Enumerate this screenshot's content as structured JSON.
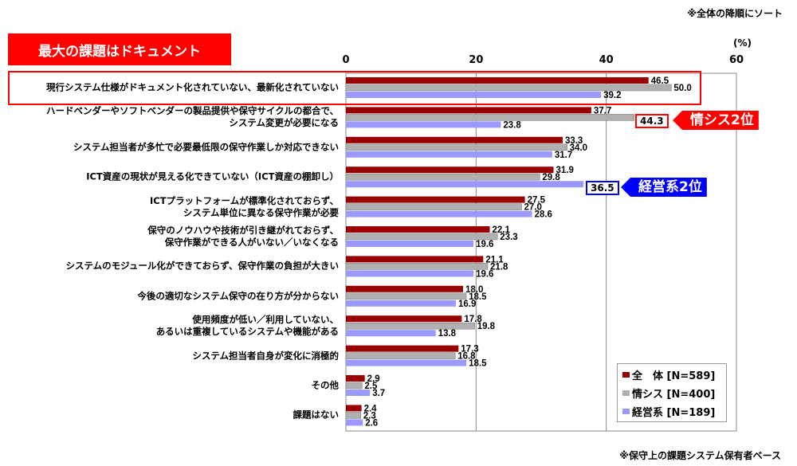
{
  "notes": {
    "sort_note": "※全体の降順にソート",
    "base_note": "※保守上の課題システム保有者ベース",
    "unit": "(%)"
  },
  "headline": "最大の課題はドキュメント",
  "callouts": [
    {
      "value": "44.3",
      "label": "情シス2位",
      "color": "#ff0000"
    },
    {
      "value": "36.5",
      "label": "経営系2位",
      "color": "#0000ff"
    }
  ],
  "chart_data": {
    "type": "bar",
    "orientation": "horizontal",
    "xlim": [
      0,
      60
    ],
    "xticks": [
      "0",
      "20",
      "40",
      "60"
    ],
    "xlabel": "(%)",
    "grid": true,
    "legend_position": "bottom-right",
    "categories": [
      [
        "現行システム仕様がドキュメント化されていない、最新化されていない"
      ],
      [
        "ハードベンダーやソフトベンダーの製品提供や保守サイクルの都合で、",
        "システム変更が必要になる"
      ],
      [
        "システム担当者が多忙で必要最低限の保守作業しか対応できない"
      ],
      [
        "ICT資産の現状が見える化できていない（ICT資産の棚卸し）"
      ],
      [
        "ICTプラットフォームが標準化されておらず、",
        "システム単位に異なる保守作業が必要"
      ],
      [
        "保守のノウハウや技術が引き継がれておらず、",
        "保守作業ができる人がいない／いなくなる"
      ],
      [
        "システムのモジュール化ができておらず、保守作業の負担が大きい"
      ],
      [
        "今後の適切なシステム保守の在り方が分からない"
      ],
      [
        "使用頻度が低い／利用していない、",
        "あるいは重複しているシステムや機能がある"
      ],
      [
        "システム担当者自身が変化に消極的"
      ],
      [
        "その他"
      ],
      [
        "課題はない"
      ]
    ],
    "series": [
      {
        "name": "全　体 [N=589]",
        "color": "#990000",
        "values": [
          46.5,
          37.7,
          33.3,
          31.9,
          27.5,
          22.1,
          21.1,
          18.0,
          17.8,
          17.3,
          2.9,
          2.4
        ]
      },
      {
        "name": "情シス [N=400]",
        "color": "#b0b0b0",
        "values": [
          50.0,
          44.3,
          34.0,
          29.8,
          27.0,
          23.3,
          21.8,
          18.5,
          19.8,
          16.8,
          2.5,
          2.3
        ]
      },
      {
        "name": "経営系 [N=189]",
        "color": "#9999ff",
        "values": [
          39.2,
          23.8,
          31.7,
          36.5,
          28.6,
          19.6,
          19.6,
          16.9,
          13.8,
          18.5,
          3.7,
          2.6
        ]
      }
    ]
  }
}
